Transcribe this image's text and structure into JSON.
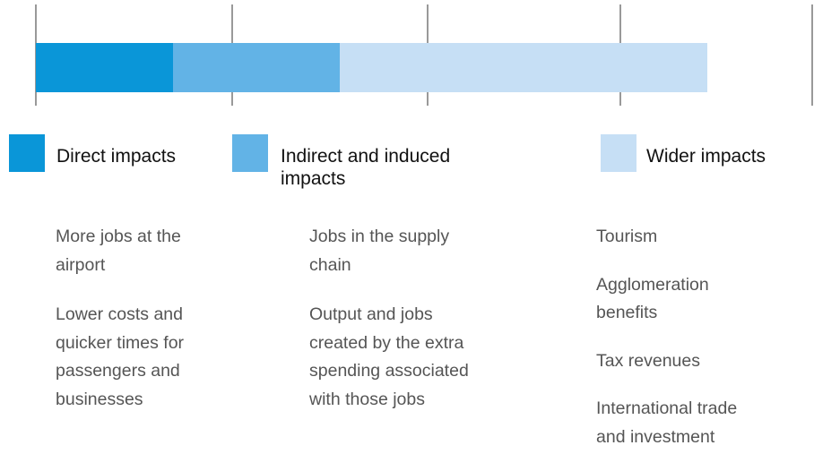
{
  "legend": [
    {
      "label": [
        "Direct impacts"
      ]
    },
    {
      "label": [
        "Indirect and induced",
        "impacts"
      ]
    },
    {
      "label": [
        "Wider impacts"
      ]
    }
  ],
  "columns": [
    {
      "items": [
        [
          "More jobs at the",
          "airport"
        ],
        [
          "Lower costs and",
          "quicker times for",
          "passengers and",
          "businesses"
        ]
      ]
    },
    {
      "items": [
        [
          "Jobs in the supply",
          "chain"
        ],
        [
          "Output and jobs",
          "created by the extra",
          "spending associated",
          "with those jobs"
        ]
      ]
    },
    {
      "items": [
        [
          "Tourism"
        ],
        [
          "Agglomeration",
          "benefits"
        ],
        [
          "Tax revenues"
        ],
        [
          "International trade",
          "and investment"
        ]
      ]
    }
  ]
}
